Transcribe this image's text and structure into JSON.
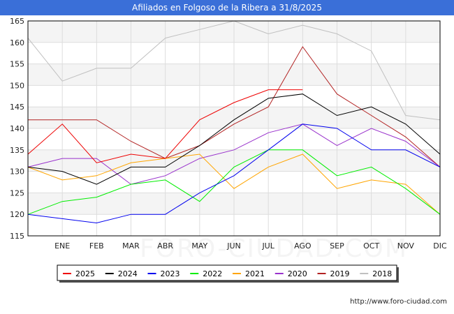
{
  "title": "Afiliados en Folgoso de la Ribera a 31/8/2025",
  "footer_url": "http://www.foro-ciudad.com",
  "watermark": "FORO-CIUDAD.COM",
  "chart_data": {
    "type": "line",
    "title": "Afiliados en Folgoso de la Ribera a 31/8/2025",
    "categories": [
      "",
      "ENE",
      "FEB",
      "MAR",
      "ABR",
      "MAY",
      "JUN",
      "JUL",
      "AGO",
      "SEP",
      "OCT",
      "NOV",
      "DIC"
    ],
    "ylim": [
      115,
      165
    ],
    "yticks": [
      115,
      120,
      125,
      130,
      135,
      140,
      145,
      150,
      155,
      160,
      165
    ],
    "grid": true,
    "legend_position": "bottom",
    "series": [
      {
        "name": "2025",
        "color": "#ee0000",
        "values": [
          134,
          141,
          132,
          134,
          133,
          142,
          146,
          149,
          149,
          null,
          null,
          null,
          null
        ]
      },
      {
        "name": "2024",
        "color": "#000000",
        "values": [
          131,
          130,
          127,
          131,
          131,
          136,
          142,
          147,
          148,
          143,
          145,
          141,
          134
        ]
      },
      {
        "name": "2023",
        "color": "#0000ee",
        "values": [
          120,
          119,
          118,
          120,
          120,
          125,
          129,
          135,
          141,
          140,
          135,
          135,
          131
        ]
      },
      {
        "name": "2022",
        "color": "#00ee00",
        "values": [
          120,
          123,
          124,
          127,
          128,
          123,
          131,
          135,
          135,
          129,
          131,
          126,
          120
        ]
      },
      {
        "name": "2021",
        "color": "#ffa500",
        "values": [
          131,
          128,
          129,
          132,
          133,
          134,
          126,
          131,
          134,
          126,
          128,
          127,
          120
        ]
      },
      {
        "name": "2020",
        "color": "#9932cc",
        "values": [
          131,
          133,
          133,
          127,
          129,
          133,
          135,
          139,
          141,
          136,
          140,
          137,
          131
        ]
      },
      {
        "name": "2019",
        "color": "#b22222",
        "values": [
          142,
          142,
          142,
          137,
          133,
          136,
          141,
          145,
          159,
          148,
          143,
          138,
          131
        ]
      },
      {
        "name": "2018",
        "color": "#c0c0c0",
        "values": [
          161,
          151,
          154,
          154,
          161,
          163,
          165,
          162,
          164,
          162,
          158,
          143,
          142
        ]
      }
    ]
  }
}
